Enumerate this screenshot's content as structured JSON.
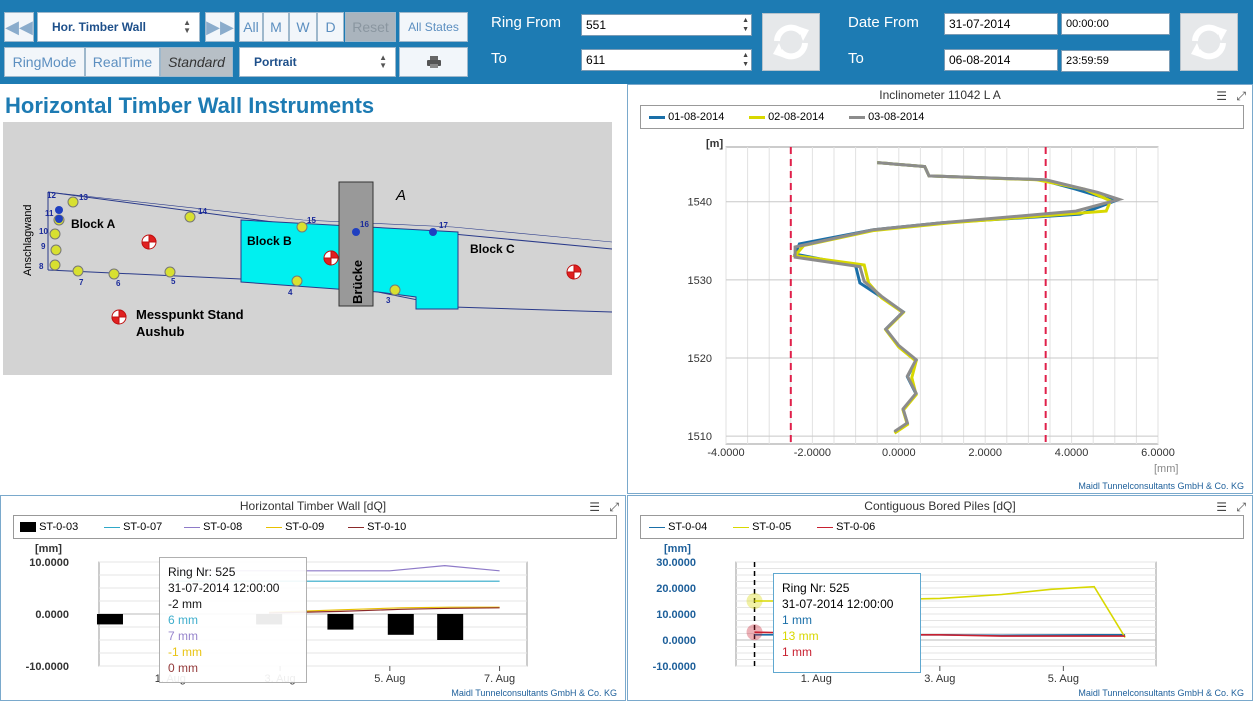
{
  "toolbar": {
    "structure_select": "Hor. Timber Wall",
    "period_buttons": [
      "All",
      "M",
      "W",
      "D"
    ],
    "reset_label": "Reset",
    "all_states_label": "All States",
    "mode_buttons": [
      "RingMode",
      "RealTime",
      "Standard"
    ],
    "orientation_select": "Portrait",
    "ring_from_label": "Ring  From",
    "ring_from_value": "551",
    "ring_to_label": "To",
    "ring_to_value": "611",
    "date_from_label": "Date From",
    "date_from_value": "31-07-2014",
    "time_from_value": "00:00:00",
    "date_to_label": "To",
    "date_to_value": "06-08-2014",
    "time_to_value": "23:59:59"
  },
  "map": {
    "title": "Horizontal Timber Wall Instruments",
    "labels": {
      "block_a": "Block A",
      "block_b": "Block B",
      "block_c": "Block C",
      "bruecke": "Brücke",
      "anschlagwand": "Anschlagwand",
      "north": "A",
      "legend_line1": "Messpunkt Stand",
      "legend_line2": "Aushub"
    },
    "point_numbers": [
      "13",
      "12",
      "11",
      "10",
      "9",
      "8",
      "7",
      "6",
      "5",
      "4",
      "3",
      "14",
      "15",
      "16",
      "17"
    ]
  },
  "inclinometer": {
    "title": "Inclinometer 11042 L A",
    "legend": [
      "01-08-2014",
      "02-08-2014",
      "03-08-2014"
    ],
    "colors": [
      "#1a6fa8",
      "#d8d800",
      "#8c8c8c"
    ],
    "yunit": "[m]",
    "xunit": "[mm]",
    "yticks": [
      "1540",
      "1530",
      "1520",
      "1510"
    ],
    "xticks": [
      "-4.0000",
      "-2.0000",
      "0.0000",
      "2.0000",
      "4.0000",
      "6.0000"
    ],
    "footer": "Maidl Tunnelconsultants GmbH & Co. KG"
  },
  "hwall": {
    "title": "Horizontal Timber Wall [dQ]",
    "legend": [
      "ST-0-03",
      "ST-0-07",
      "ST-0-08",
      "ST-0-09",
      "ST-0-10"
    ],
    "yunit": "[mm]",
    "yticks": [
      "10.0000",
      "0.0000",
      "-10.0000"
    ],
    "xticks": [
      "1. Aug",
      "3. Aug",
      "5. Aug",
      "7. Aug"
    ],
    "tooltip": [
      "Ring Nr: 525",
      "31-07-2014 12:00:00",
      " -2 mm",
      "6 mm",
      "7 mm",
      "-1 mm",
      "0 mm"
    ],
    "footer": "Maidl Tunnelconsultants GmbH & Co. KG"
  },
  "piles": {
    "title": "Contiguous Bored Piles [dQ]",
    "legend": [
      "ST-0-04",
      "ST-0-05",
      "ST-0-06"
    ],
    "yunit": "[mm]",
    "yticks": [
      "30.0000",
      "20.0000",
      "10.0000",
      "0.0000",
      "-10.0000"
    ],
    "xticks": [
      "1. Aug",
      "3. Aug",
      "5. Aug"
    ],
    "tooltip": [
      "Ring Nr: 525",
      "31-07-2014 12:00:00",
      "1 mm",
      "13 mm",
      "1 mm"
    ],
    "footer": "Maidl Tunnelconsultants GmbH & Co. KG"
  },
  "chart_data": [
    {
      "type": "line",
      "title": "Inclinometer 11042 L A",
      "xlabel": "[mm]",
      "ylabel": "[m]",
      "xlim": [
        -4,
        6
      ],
      "ylim": [
        1509,
        1547
      ],
      "series": [
        {
          "name": "01-08-2014",
          "points": [
            [
              -0.5,
              1545
            ],
            [
              0.6,
              1544.5
            ],
            [
              0.7,
              1543.3
            ],
            [
              3.3,
              1542.8
            ],
            [
              4.1,
              1541.6
            ],
            [
              5.0,
              1540.1
            ],
            [
              4.2,
              1538.4
            ],
            [
              1.0,
              1537.3
            ],
            [
              -0.6,
              1536.4
            ],
            [
              -2.3,
              1534.6
            ],
            [
              -2.4,
              1533.3
            ],
            [
              -1.0,
              1531.8
            ],
            [
              -0.9,
              1529.6
            ],
            [
              -0.4,
              1527.8
            ],
            [
              0.1,
              1525.9
            ],
            [
              -0.3,
              1523.7
            ],
            [
              0.0,
              1521.5
            ],
            [
              0.4,
              1519.7
            ],
            [
              0.2,
              1517.6
            ],
            [
              0.4,
              1515.4
            ],
            [
              0.1,
              1513.4
            ],
            [
              0.2,
              1511.6
            ],
            [
              -0.1,
              1510.5
            ]
          ]
        },
        {
          "name": "02-08-2014",
          "points": [
            [
              -0.5,
              1545
            ],
            [
              0.6,
              1544.5
            ],
            [
              0.7,
              1543.3
            ],
            [
              3.2,
              1542.8
            ],
            [
              4.3,
              1541.6
            ],
            [
              4.9,
              1540.1
            ],
            [
              4.8,
              1538.8
            ],
            [
              1.2,
              1537.3
            ],
            [
              -0.6,
              1536.3
            ],
            [
              -2.2,
              1534.4
            ],
            [
              -2.4,
              1533.1
            ],
            [
              -0.8,
              1531.9
            ],
            [
              -0.7,
              1529.6
            ],
            [
              -0.4,
              1527.7
            ],
            [
              0.1,
              1525.8
            ],
            [
              -0.3,
              1523.6
            ],
            [
              0.0,
              1521.4
            ],
            [
              0.4,
              1519.6
            ],
            [
              0.3,
              1517.5
            ],
            [
              0.4,
              1515.3
            ],
            [
              0.1,
              1513.3
            ],
            [
              0.2,
              1511.5
            ],
            [
              -0.1,
              1510.4
            ]
          ]
        },
        {
          "name": "03-08-2014",
          "points": [
            [
              -0.5,
              1545
            ],
            [
              0.6,
              1544.5
            ],
            [
              0.7,
              1543.3
            ],
            [
              3.4,
              1542.8
            ],
            [
              4.6,
              1541.2
            ],
            [
              5.1,
              1540.3
            ],
            [
              4.1,
              1538.8
            ],
            [
              1.0,
              1537.3
            ],
            [
              -0.6,
              1536.4
            ],
            [
              -2.4,
              1534.2
            ],
            [
              -2.4,
              1532.9
            ],
            [
              -0.9,
              1531.7
            ],
            [
              -0.8,
              1529.8
            ],
            [
              -0.4,
              1527.9
            ],
            [
              0.1,
              1525.9
            ],
            [
              -0.3,
              1523.7
            ],
            [
              0.0,
              1521.6
            ],
            [
              0.4,
              1519.8
            ],
            [
              0.2,
              1517.7
            ],
            [
              0.4,
              1515.5
            ],
            [
              0.1,
              1513.5
            ],
            [
              0.2,
              1511.7
            ],
            [
              -0.1,
              1510.6
            ]
          ]
        }
      ],
      "limits": [
        -2.5,
        3.4
      ]
    },
    {
      "type": "bar",
      "title": "Horizontal Timber Wall [dQ]",
      "ylabel": "[mm]",
      "ylim": [
        -10,
        10
      ],
      "x_day_range": [
        -0.3,
        7.5
      ],
      "xticks_days": [
        1,
        3,
        5,
        7
      ],
      "bars": {
        "name": "ST-0-03",
        "x": [
          -0.1,
          2.8,
          4.1,
          5.2,
          6.1
        ],
        "values": [
          -2,
          -2,
          -3,
          -4,
          -5
        ]
      },
      "series": [
        {
          "name": "ST-0-07",
          "color": "#2fa8c8",
          "x": [
            1.0,
            7.0
          ],
          "values": [
            6.3,
            6.3
          ]
        },
        {
          "name": "ST-0-08",
          "color": "#8e7ac8",
          "x": [
            1.0,
            3.0,
            5.0,
            6.0,
            7.0
          ],
          "values": [
            8.3,
            8.3,
            8.3,
            9.3,
            8.3
          ]
        },
        {
          "name": "ST-0-09",
          "color": "#e8c000",
          "x": [
            2.8,
            4.1,
            5.2,
            6.1,
            7.0
          ],
          "values": [
            0.3,
            0.8,
            1.2,
            1.3,
            1.3
          ]
        },
        {
          "name": "ST-0-10",
          "color": "#8b2a2a",
          "x": [
            2.8,
            4.1,
            5.2,
            6.1,
            7.0
          ],
          "values": [
            0.2,
            0.5,
            0.9,
            1.1,
            1.2
          ]
        }
      ],
      "series_colors": [
        "#000000",
        "#2fa8c8",
        "#8e7ac8",
        "#e8c000",
        "#8b2a2a"
      ]
    },
    {
      "type": "line",
      "title": "Contiguous Bored Piles [dQ]",
      "ylabel": "[mm]",
      "ylim": [
        -10,
        30
      ],
      "x_day_range": [
        -0.3,
        6.5
      ],
      "xticks_days": [
        1,
        3,
        5
      ],
      "series": [
        {
          "name": "ST-0-04",
          "color": "#1a6fa8",
          "x": [
            0.0,
            1.0,
            2.0,
            3.0,
            4.0,
            5.5,
            6.0
          ],
          "values": [
            2,
            2,
            2,
            2,
            1.8,
            2,
            2
          ]
        },
        {
          "name": "ST-0-05",
          "color": "#d8d800",
          "x": [
            0.0,
            1.0,
            2.0,
            3.0,
            4.0,
            4.8,
            5.5,
            6.0
          ],
          "values": [
            15,
            15,
            15.5,
            16,
            17.5,
            19.5,
            20.5,
            1
          ]
        },
        {
          "name": "ST-0-06",
          "color": "#c82030",
          "x": [
            0.0,
            1.0,
            2.0,
            3.0,
            4.0,
            5.0,
            6.0
          ],
          "values": [
            3,
            2.5,
            2,
            2,
            1.5,
            1.5,
            1.5
          ]
        }
      ]
    }
  ]
}
